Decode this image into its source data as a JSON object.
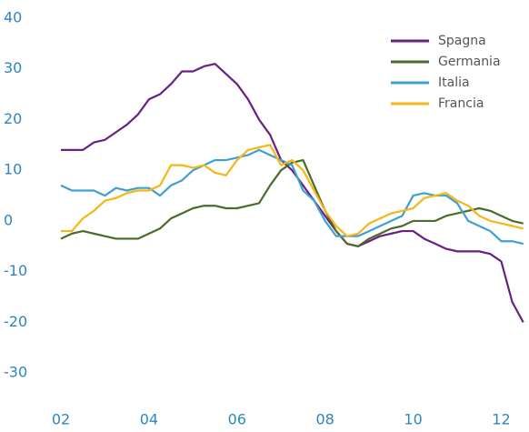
{
  "chart_data": {
    "type": "line",
    "x": [
      2002,
      2002.25,
      2002.5,
      2002.75,
      2003,
      2003.25,
      2003.5,
      2003.75,
      2004,
      2004.25,
      2004.5,
      2004.75,
      2005,
      2005.25,
      2005.5,
      2005.75,
      2006,
      2006.25,
      2006.5,
      2006.75,
      2007,
      2007.25,
      2007.5,
      2007.75,
      2008,
      2008.25,
      2008.5,
      2008.75,
      2009,
      2009.25,
      2009.5,
      2009.75,
      2010,
      2010.25,
      2010.5,
      2010.75,
      2011,
      2011.25,
      2011.5,
      2011.75,
      2012,
      2012.25,
      2012.5
    ],
    "series": [
      {
        "name": "Spagna",
        "color": "#6b1f82",
        "values": [
          14,
          14,
          14,
          15.5,
          16,
          17.5,
          19,
          21,
          24,
          25,
          27,
          29.5,
          29.5,
          30.5,
          31,
          29,
          27,
          24,
          20,
          17,
          12,
          10,
          7,
          4,
          1,
          -2,
          -4.5,
          -5,
          -4,
          -3,
          -2.5,
          -2,
          -2,
          -3.5,
          -4.5,
          -5.5,
          -6,
          -6,
          -6,
          -6.5,
          -8,
          -16,
          -20
        ]
      },
      {
        "name": "Germania",
        "color": "#4a6b2a",
        "values": [
          -3.5,
          -2.5,
          -2,
          -2.5,
          -3,
          -3.5,
          -3.5,
          -3.5,
          -2.5,
          -1.5,
          0.5,
          1.5,
          2.5,
          3,
          3,
          2.5,
          2.5,
          3,
          3.5,
          7,
          10,
          11.5,
          12,
          7,
          2,
          -2,
          -4.5,
          -5,
          -3.5,
          -2.5,
          -1.5,
          -1,
          0,
          0,
          0,
          1,
          1.5,
          2,
          2.5,
          2,
          1,
          0,
          -0.5
        ]
      },
      {
        "name": "Italia",
        "color": "#3fa0d0",
        "values": [
          7,
          6,
          6,
          6,
          5,
          6.5,
          6,
          6.5,
          6.5,
          5,
          7,
          8,
          10,
          11,
          12,
          12,
          12.5,
          13,
          14,
          13,
          12,
          11,
          6,
          4,
          0,
          -3,
          -3,
          -3,
          -2,
          -1,
          0,
          1,
          5,
          5.5,
          5,
          5,
          3.5,
          0,
          -1,
          -2,
          -4,
          -4,
          -4.5
        ]
      },
      {
        "name": "Francia",
        "color": "#f5b616",
        "values": [
          -2,
          -2,
          0.5,
          2,
          4,
          4.5,
          5.5,
          6,
          6,
          7,
          11,
          11,
          10.5,
          11,
          9.5,
          9,
          12,
          14,
          14.5,
          15,
          11,
          12,
          10,
          6,
          2,
          -1,
          -3,
          -2.5,
          -0.5,
          0.5,
          1.5,
          2,
          2.5,
          4.5,
          5,
          5.5,
          4,
          3,
          1,
          0,
          -0.5,
          -1,
          -1.5
        ]
      }
    ],
    "xlim": [
      2002,
      2012.5
    ],
    "xticks": [
      {
        "value": 2002,
        "label": "02"
      },
      {
        "value": 2004,
        "label": "04"
      },
      {
        "value": 2006,
        "label": "06"
      },
      {
        "value": 2008,
        "label": "08"
      },
      {
        "value": 2010,
        "label": "10"
      },
      {
        "value": 2012,
        "label": "12"
      }
    ],
    "ylim": [
      -35,
      40
    ],
    "yticks": [
      -30,
      -20,
      -10,
      0,
      10,
      20,
      30,
      40
    ],
    "grid": false,
    "legend": "upper right"
  }
}
